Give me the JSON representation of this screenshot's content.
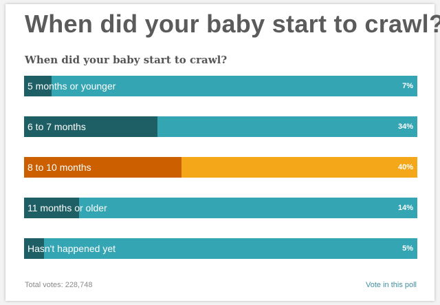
{
  "header": {
    "title": "When did your baby start to crawl?",
    "question": "When did your baby start to crawl?"
  },
  "colors": {
    "bar_bg": "#33a5b3",
    "bar_fill": "#1e5f66",
    "selected_bg": "#f4a819",
    "selected_fill": "#cc5f00"
  },
  "chart_data": {
    "type": "bar",
    "orientation": "horizontal",
    "categories": [
      "5 months or younger",
      "6 to 7 months",
      "8 to 10 months",
      "11 months or older",
      "Hasn't happened yet"
    ],
    "values": [
      7,
      34,
      40,
      14,
      5
    ],
    "value_labels": [
      "7%",
      "34%",
      "40%",
      "14%",
      "5%"
    ],
    "unit": "%",
    "highlighted_index": 2,
    "xlim": [
      0,
      100
    ]
  },
  "footer": {
    "total_votes": "Total votes: 228,748",
    "vote_link": "Vote in this poll"
  }
}
